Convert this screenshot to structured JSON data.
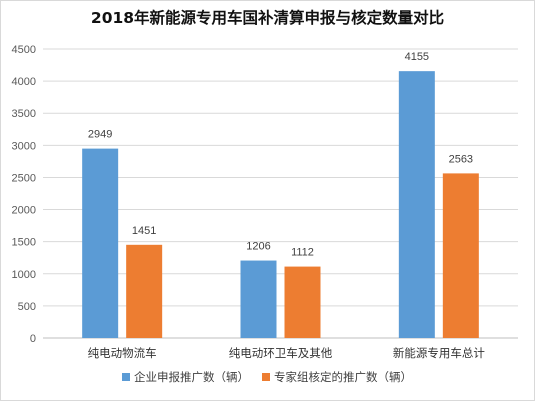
{
  "chart_data": {
    "type": "bar",
    "title": "2018年新能源专用车国补清算申报与核定数量对比",
    "categories": [
      "纯电动物流车",
      "纯电动环卫车及其他",
      "新能源专用车总计"
    ],
    "series": [
      {
        "name": "企业申报推广数（辆）",
        "values": [
          2949,
          1206,
          4155
        ],
        "color": "#5B9BD5"
      },
      {
        "name": "专家组核定的推广数（辆）",
        "values": [
          1451,
          1112,
          2563
        ],
        "color": "#ED7D31"
      }
    ],
    "ylim": [
      0,
      4500
    ],
    "yticks": [
      0,
      500,
      1000,
      1500,
      2000,
      2500,
      3000,
      3500,
      4000,
      4500
    ],
    "grid": true,
    "legend": "bottom"
  }
}
